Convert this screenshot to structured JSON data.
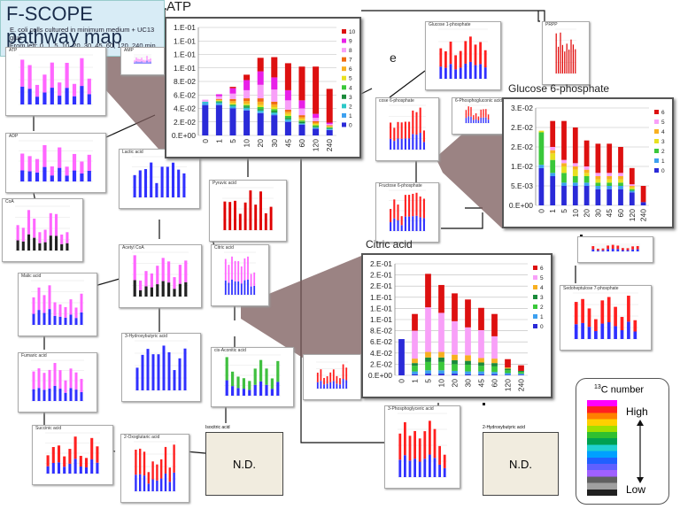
{
  "header": {
    "title": "F-SCOPE pathway map",
    "desc": [
      "E. coli cells cultured in minimum medium + UC13",
      "gluc",
      "From left: 0, 1, 5, 10, 20, 30, 45, 60, 120, 240 min"
    ]
  },
  "label_e": "e",
  "nd_text": "N.D.",
  "legend": {
    "title_sup": "13",
    "title_rest": "C number",
    "high": "High",
    "low": "Low",
    "gradient": [
      "#ff00ff",
      "#ff2020",
      "#ff8000",
      "#ffd000",
      "#a0e000",
      "#30c030",
      "#00a050",
      "#20d0d0",
      "#00a0ff",
      "#2060ff",
      "#6060ff",
      "#a060ff",
      "#606060",
      "#a0a0a0",
      "#202020"
    ]
  },
  "minis": [
    {
      "label": "ATP",
      "colors": [
        "#3030ff",
        "#ff66ff"
      ]
    },
    {
      "label": "AMP",
      "colors": [
        "#3030ff",
        "#ff66ff"
      ]
    },
    {
      "label": "ADP",
      "colors": [
        "#3030ff",
        "#ff66ff"
      ]
    },
    {
      "label": "CoA",
      "colors": [
        "#222222",
        "#ff66ff"
      ]
    },
    {
      "label": "Malic acid",
      "colors": [
        "#3030ff",
        "#ff66ff"
      ]
    },
    {
      "label": "Fumaric acid",
      "colors": [
        "#3030ff",
        "#ff66ff"
      ]
    },
    {
      "label": "Succinic acid",
      "colors": [
        "#3030ff",
        "#ff2020"
      ]
    },
    {
      "label": "Lactic acid",
      "colors": [
        "#3030ff"
      ]
    },
    {
      "label": "Pyruvic acid",
      "colors": [
        "#e00000"
      ]
    },
    {
      "label": "Acetyl CoA",
      "colors": [
        "#222222",
        "#ff66ff"
      ]
    },
    {
      "label": "Citric acid",
      "colors": [
        "#3030ff",
        "#ff66ff"
      ]
    },
    {
      "label": "3-Hydroxybutyric acid",
      "colors": [
        "#3030ff"
      ]
    },
    {
      "label": "cis-Aconitic acid",
      "colors": [
        "#3030ff",
        "#40c040"
      ]
    },
    {
      "label": "2-Oxoglutaric acid",
      "colors": [
        "#3030ff",
        "#ff2020"
      ]
    },
    {
      "label": "Isocitric acid",
      "colors": [
        "#3030ff"
      ]
    },
    {
      "label": "Glucose 1-phosphate",
      "colors": [
        "#3030ff",
        "#ff2020"
      ]
    },
    {
      "label": "PRPP",
      "colors": [
        "#e00000"
      ]
    },
    {
      "label": "Fructose 6-phosphate",
      "colors": [
        "#3030ff",
        "#ff2020"
      ]
    },
    {
      "label": "cose 6-phosphate",
      "colors": [
        "#3030ff",
        "#ff2020"
      ]
    },
    {
      "label": "6-Phosphogluconic acid",
      "colors": [
        "#3030ff",
        "#ff2020"
      ]
    },
    {
      "label": "Sedoheptulose 7-phosphate",
      "colors": [
        "#3030ff",
        "#ff2020"
      ]
    },
    {
      "label": "3-Phosphoglyceric acid",
      "colors": [
        "#3030ff",
        "#ff2020"
      ]
    },
    {
      "label": "2-Hydroxybutyric acid",
      "colors": []
    }
  ],
  "chart_data": [
    {
      "type": "bar",
      "title": "ATP",
      "categories": [
        "0",
        "1",
        "5",
        "10",
        "20",
        "30",
        "45",
        "60",
        "120",
        "240"
      ],
      "ylim": [
        0,
        0.16
      ],
      "yticks": [
        "0.E+00",
        "2.E-02",
        "4.E-02",
        "6.E-02",
        "8.E-02",
        "1.E-01",
        "1.E-01",
        "1.E-01",
        "1.E-01"
      ],
      "series": [
        {
          "name": "0",
          "color": "#2a2ad8",
          "values": [
            0.045,
            0.045,
            0.04,
            0.037,
            0.033,
            0.03,
            0.02,
            0.016,
            0.01,
            0.008
          ]
        },
        {
          "name": "1",
          "color": "#3da0f0",
          "values": [
            0.003,
            0.002,
            0.002,
            0.002,
            0.002,
            0.002,
            0.002,
            0.001,
            0.001,
            0.001
          ]
        },
        {
          "name": "2",
          "color": "#2cc8c8",
          "values": [
            0.002,
            0.002,
            0.002,
            0.002,
            0.002,
            0.002,
            0.002,
            0.001,
            0.001,
            0.001
          ]
        },
        {
          "name": "3",
          "color": "#1a8a3a",
          "values": [
            0.0,
            0.001,
            0.001,
            0.002,
            0.002,
            0.002,
            0.002,
            0.002,
            0.001,
            0.001
          ]
        },
        {
          "name": "4",
          "color": "#3ac83a",
          "values": [
            0.0,
            0.001,
            0.001,
            0.002,
            0.003,
            0.003,
            0.003,
            0.002,
            0.002,
            0.001
          ]
        },
        {
          "name": "5",
          "color": "#e8e020",
          "values": [
            0.0,
            0.001,
            0.002,
            0.002,
            0.003,
            0.003,
            0.003,
            0.002,
            0.002,
            0.001
          ]
        },
        {
          "name": "6",
          "color": "#f8b020",
          "values": [
            0.0,
            0.001,
            0.003,
            0.004,
            0.005,
            0.004,
            0.003,
            0.003,
            0.002,
            0.001
          ]
        },
        {
          "name": "7",
          "color": "#f06a10",
          "values": [
            0.0,
            0.001,
            0.003,
            0.004,
            0.005,
            0.004,
            0.003,
            0.003,
            0.002,
            0.001
          ]
        },
        {
          "name": "8",
          "color": "#f8a0f8",
          "values": [
            0.003,
            0.004,
            0.008,
            0.012,
            0.02,
            0.018,
            0.014,
            0.01,
            0.005,
            0.002
          ]
        },
        {
          "name": "9",
          "color": "#e820e8",
          "values": [
            0.0,
            0.003,
            0.008,
            0.015,
            0.02,
            0.018,
            0.015,
            0.012,
            0.006,
            0.002
          ]
        },
        {
          "name": "10",
          "color": "#dd1010",
          "values": [
            0.0,
            0.0,
            0.002,
            0.008,
            0.02,
            0.03,
            0.04,
            0.05,
            0.07,
            0.05
          ]
        }
      ]
    },
    {
      "type": "bar",
      "title": "Glucose 6-phosphate",
      "categories": [
        "0",
        "1",
        "5",
        "10",
        "20",
        "30",
        "45",
        "60",
        "120",
        "240"
      ],
      "ylim": [
        0,
        0.03
      ],
      "yticks": [
        "0.E+00",
        "5.E-03",
        "1.E-02",
        "2.E-02",
        "2.E-02",
        "3.E-02"
      ],
      "series": [
        {
          "name": "0",
          "color": "#2a2ad8",
          "values": [
            0.0115,
            0.009,
            0.006,
            0.006,
            0.006,
            0.005,
            0.005,
            0.005,
            0.004,
            0.001
          ]
        },
        {
          "name": "1",
          "color": "#3da0f0",
          "values": [
            0.001,
            0.001,
            0.001,
            0.001,
            0.001,
            0.001,
            0.001,
            0.001,
            0.0005,
            0.0
          ]
        },
        {
          "name": "2",
          "color": "#3ac83a",
          "values": [
            0.01,
            0.004,
            0.003,
            0.002,
            0.002,
            0.001,
            0.001,
            0.001,
            0.0005,
            0.0
          ]
        },
        {
          "name": "3",
          "color": "#e8e020",
          "values": [
            0.0005,
            0.002,
            0.002,
            0.002,
            0.001,
            0.001,
            0.001,
            0.001,
            0.0005,
            0.0
          ]
        },
        {
          "name": "4",
          "color": "#f8b020",
          "values": [
            0.0,
            0.001,
            0.001,
            0.001,
            0.001,
            0.001,
            0.001,
            0.001,
            0.0005,
            0.0
          ]
        },
        {
          "name": "5",
          "color": "#f8a0f8",
          "values": [
            0.0,
            0.001,
            0.001,
            0.001,
            0.001,
            0.001,
            0.001,
            0.001,
            0.0005,
            0.0
          ]
        },
        {
          "name": "6",
          "color": "#dd1010",
          "values": [
            0.0,
            0.008,
            0.012,
            0.011,
            0.008,
            0.009,
            0.009,
            0.008,
            0.005,
            0.005
          ]
        }
      ]
    },
    {
      "type": "bar",
      "title": "Citric acid",
      "categories": [
        "0",
        "1",
        "5",
        "10",
        "20",
        "30",
        "45",
        "60",
        "120",
        "240"
      ],
      "ylim": [
        0,
        0.2
      ],
      "yticks": [
        "0.E+00",
        "2.E-02",
        "4.E-02",
        "6.E-02",
        "8.E-02",
        "1.E-01",
        "1.E-01",
        "1.E-01",
        "2.E-01",
        "2.E-01",
        "2.E-01"
      ],
      "series": [
        {
          "name": "0",
          "color": "#2a2ad8",
          "values": [
            0.065,
            0.002,
            0.003,
            0.003,
            0.003,
            0.002,
            0.002,
            0.002,
            0.001,
            0.001
          ]
        },
        {
          "name": "1",
          "color": "#3da0f0",
          "values": [
            0.0,
            0.005,
            0.006,
            0.006,
            0.005,
            0.005,
            0.005,
            0.004,
            0.003,
            0.002
          ]
        },
        {
          "name": "2",
          "color": "#3ac83a",
          "values": [
            0.0,
            0.01,
            0.015,
            0.015,
            0.012,
            0.012,
            0.01,
            0.01,
            0.005,
            0.003
          ]
        },
        {
          "name": "3",
          "color": "#1a8a3a",
          "values": [
            0.0,
            0.005,
            0.008,
            0.008,
            0.007,
            0.007,
            0.006,
            0.006,
            0.003,
            0.002
          ]
        },
        {
          "name": "4",
          "color": "#f8b020",
          "values": [
            0.0,
            0.008,
            0.01,
            0.01,
            0.01,
            0.01,
            0.008,
            0.008,
            0.002,
            0.0
          ]
        },
        {
          "name": "5",
          "color": "#f8a0f8",
          "values": [
            0.0,
            0.05,
            0.08,
            0.07,
            0.06,
            0.05,
            0.05,
            0.04,
            0.0,
            0.0
          ]
        },
        {
          "name": "6",
          "color": "#dd1010",
          "values": [
            0.0,
            0.03,
            0.06,
            0.05,
            0.05,
            0.05,
            0.04,
            0.04,
            0.015,
            0.01
          ]
        }
      ]
    }
  ]
}
